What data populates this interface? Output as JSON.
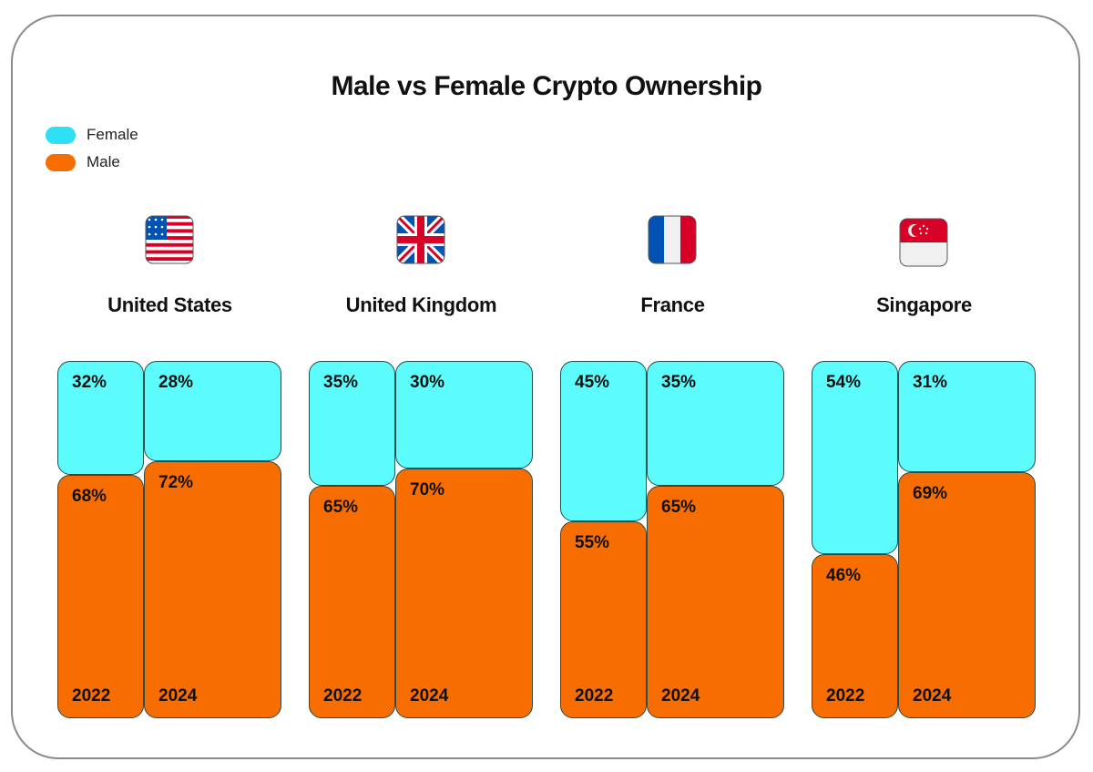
{
  "chart_data": {
    "type": "bar",
    "stacked": true,
    "title": "Male vs Female Crypto Ownership",
    "legend": {
      "placement": "top-left",
      "entries": [
        "Female",
        "Male"
      ]
    },
    "colors": {
      "Female": "#5cfcfc",
      "Male": "#f76d00"
    },
    "unit": "%",
    "groups": [
      {
        "country": "United States",
        "flag": "us-flag-icon",
        "years": [
          {
            "year": "2022",
            "female": 32,
            "male": 68
          },
          {
            "year": "2024",
            "female": 28,
            "male": 72
          }
        ]
      },
      {
        "country": "United Kingdom",
        "flag": "uk-flag-icon",
        "years": [
          {
            "year": "2022",
            "female": 35,
            "male": 65
          },
          {
            "year": "2024",
            "female": 30,
            "male": 70
          }
        ]
      },
      {
        "country": "France",
        "flag": "france-flag-icon",
        "years": [
          {
            "year": "2022",
            "female": 45,
            "male": 55
          },
          {
            "year": "2024",
            "female": 35,
            "male": 65
          }
        ]
      },
      {
        "country": "Singapore",
        "flag": "singapore-flag-icon",
        "years": [
          {
            "year": "2022",
            "female": 54,
            "male": 46
          },
          {
            "year": "2024",
            "female": 31,
            "male": 69
          }
        ]
      }
    ]
  }
}
